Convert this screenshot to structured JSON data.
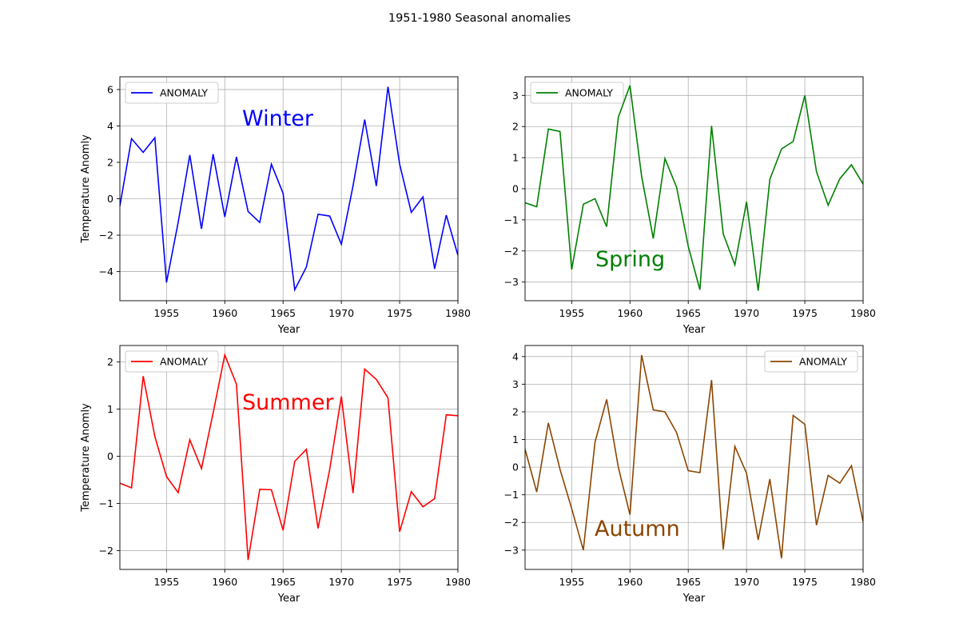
{
  "figure": {
    "suptitle": "1951-1980 Seasonal anomalies"
  },
  "chart_data": [
    {
      "type": "line",
      "season": "Winter",
      "annotation": "Winter",
      "color": "#0000ff",
      "xlabel": "Year",
      "ylabel": "Temperature Anomly",
      "xlim": [
        1951,
        1980
      ],
      "ylim": [
        -5.6,
        6.7
      ],
      "xticks": [
        1955,
        1960,
        1965,
        1970,
        1975,
        1980
      ],
      "yticks": [
        -4,
        -2,
        0,
        2,
        4,
        6
      ],
      "grid": true,
      "legend_loc": "upper-left",
      "series": [
        {
          "name": "ANOMALY",
          "x": [
            1951,
            1952,
            1953,
            1954,
            1955,
            1956,
            1957,
            1958,
            1959,
            1960,
            1961,
            1962,
            1963,
            1964,
            1965,
            1966,
            1967,
            1968,
            1969,
            1970,
            1971,
            1972,
            1973,
            1974,
            1975,
            1976,
            1977,
            1978,
            1979,
            1980
          ],
          "values": [
            -0.4,
            3.3,
            2.55,
            3.35,
            -4.6,
            -1.3,
            2.4,
            -1.65,
            2.45,
            -1.0,
            2.3,
            -0.7,
            -1.3,
            1.9,
            0.3,
            -5.0,
            -3.75,
            -0.85,
            -0.95,
            -2.5,
            0.7,
            4.35,
            0.7,
            6.15,
            1.9,
            -0.75,
            0.1,
            -3.85,
            -0.9,
            -3.1
          ]
        }
      ]
    },
    {
      "type": "line",
      "season": "Spring",
      "annotation": "Spring",
      "color": "#008000",
      "xlabel": "Year",
      "ylabel": "",
      "xlim": [
        1951,
        1980
      ],
      "ylim": [
        -3.6,
        3.6
      ],
      "xticks": [
        1955,
        1960,
        1965,
        1970,
        1975,
        1980
      ],
      "yticks": [
        -3,
        -2,
        -1,
        0,
        1,
        2,
        3
      ],
      "grid": true,
      "legend_loc": "upper-left",
      "series": [
        {
          "name": "ANOMALY",
          "x": [
            1951,
            1952,
            1953,
            1954,
            1955,
            1956,
            1957,
            1958,
            1959,
            1960,
            1961,
            1962,
            1963,
            1964,
            1965,
            1966,
            1967,
            1968,
            1969,
            1970,
            1971,
            1972,
            1973,
            1974,
            1975,
            1976,
            1977,
            1978,
            1979,
            1980
          ],
          "values": [
            -0.45,
            -0.58,
            1.92,
            1.84,
            -2.6,
            -0.5,
            -0.32,
            -1.22,
            2.3,
            3.32,
            0.4,
            -1.6,
            0.97,
            0.05,
            -1.85,
            -3.25,
            2.02,
            -1.45,
            -2.45,
            -0.42,
            -3.28,
            0.3,
            1.28,
            1.52,
            3.0,
            0.55,
            -0.53,
            0.32,
            0.77,
            0.15
          ]
        }
      ]
    },
    {
      "type": "line",
      "season": "Summer",
      "annotation": "Summer",
      "color": "#ff0000",
      "xlabel": "Year",
      "ylabel": "Temperature Anomly",
      "xlim": [
        1951,
        1980
      ],
      "ylim": [
        -2.4,
        2.35
      ],
      "xticks": [
        1955,
        1960,
        1965,
        1970,
        1975,
        1980
      ],
      "yticks": [
        -2,
        -1,
        0,
        1,
        2
      ],
      "grid": true,
      "legend_loc": "upper-left",
      "series": [
        {
          "name": "ANOMALY",
          "x": [
            1951,
            1952,
            1953,
            1954,
            1955,
            1956,
            1957,
            1958,
            1959,
            1960,
            1961,
            1962,
            1963,
            1964,
            1965,
            1966,
            1967,
            1968,
            1969,
            1970,
            1971,
            1972,
            1973,
            1974,
            1975,
            1976,
            1977,
            1978,
            1979,
            1980
          ],
          "values": [
            -0.57,
            -0.67,
            1.7,
            0.42,
            -0.43,
            -0.77,
            0.35,
            -0.26,
            0.92,
            2.15,
            1.53,
            -2.2,
            -0.7,
            -0.71,
            -1.57,
            -0.11,
            0.15,
            -1.53,
            -0.28,
            1.27,
            -0.78,
            1.85,
            1.63,
            1.24,
            -1.6,
            -0.75,
            -1.07,
            -0.9,
            0.88,
            0.86
          ]
        }
      ]
    },
    {
      "type": "line",
      "season": "Autumn",
      "annotation": "Autumn",
      "color": "#8b4500",
      "xlabel": "Year",
      "ylabel": "",
      "xlim": [
        1951,
        1980
      ],
      "ylim": [
        -3.7,
        4.4
      ],
      "xticks": [
        1955,
        1960,
        1965,
        1970,
        1975,
        1980
      ],
      "yticks": [
        -3,
        -2,
        -1,
        0,
        1,
        2,
        3,
        4
      ],
      "grid": true,
      "legend_loc": "upper-right",
      "series": [
        {
          "name": "ANOMALY",
          "x": [
            1951,
            1952,
            1953,
            1954,
            1955,
            1956,
            1957,
            1958,
            1959,
            1960,
            1961,
            1962,
            1963,
            1964,
            1965,
            1966,
            1967,
            1968,
            1969,
            1970,
            1971,
            1972,
            1973,
            1974,
            1975,
            1976,
            1977,
            1978,
            1979,
            1980
          ],
          "values": [
            0.65,
            -0.9,
            1.6,
            -0.08,
            -1.5,
            -3.0,
            0.9,
            2.45,
            0.0,
            -1.72,
            4.05,
            2.07,
            2.0,
            1.25,
            -0.13,
            -0.2,
            3.15,
            -2.97,
            0.75,
            -0.22,
            -2.63,
            -0.43,
            -3.3,
            1.87,
            1.55,
            -2.1,
            -0.3,
            -0.58,
            0.05,
            -1.97
          ]
        }
      ]
    }
  ]
}
